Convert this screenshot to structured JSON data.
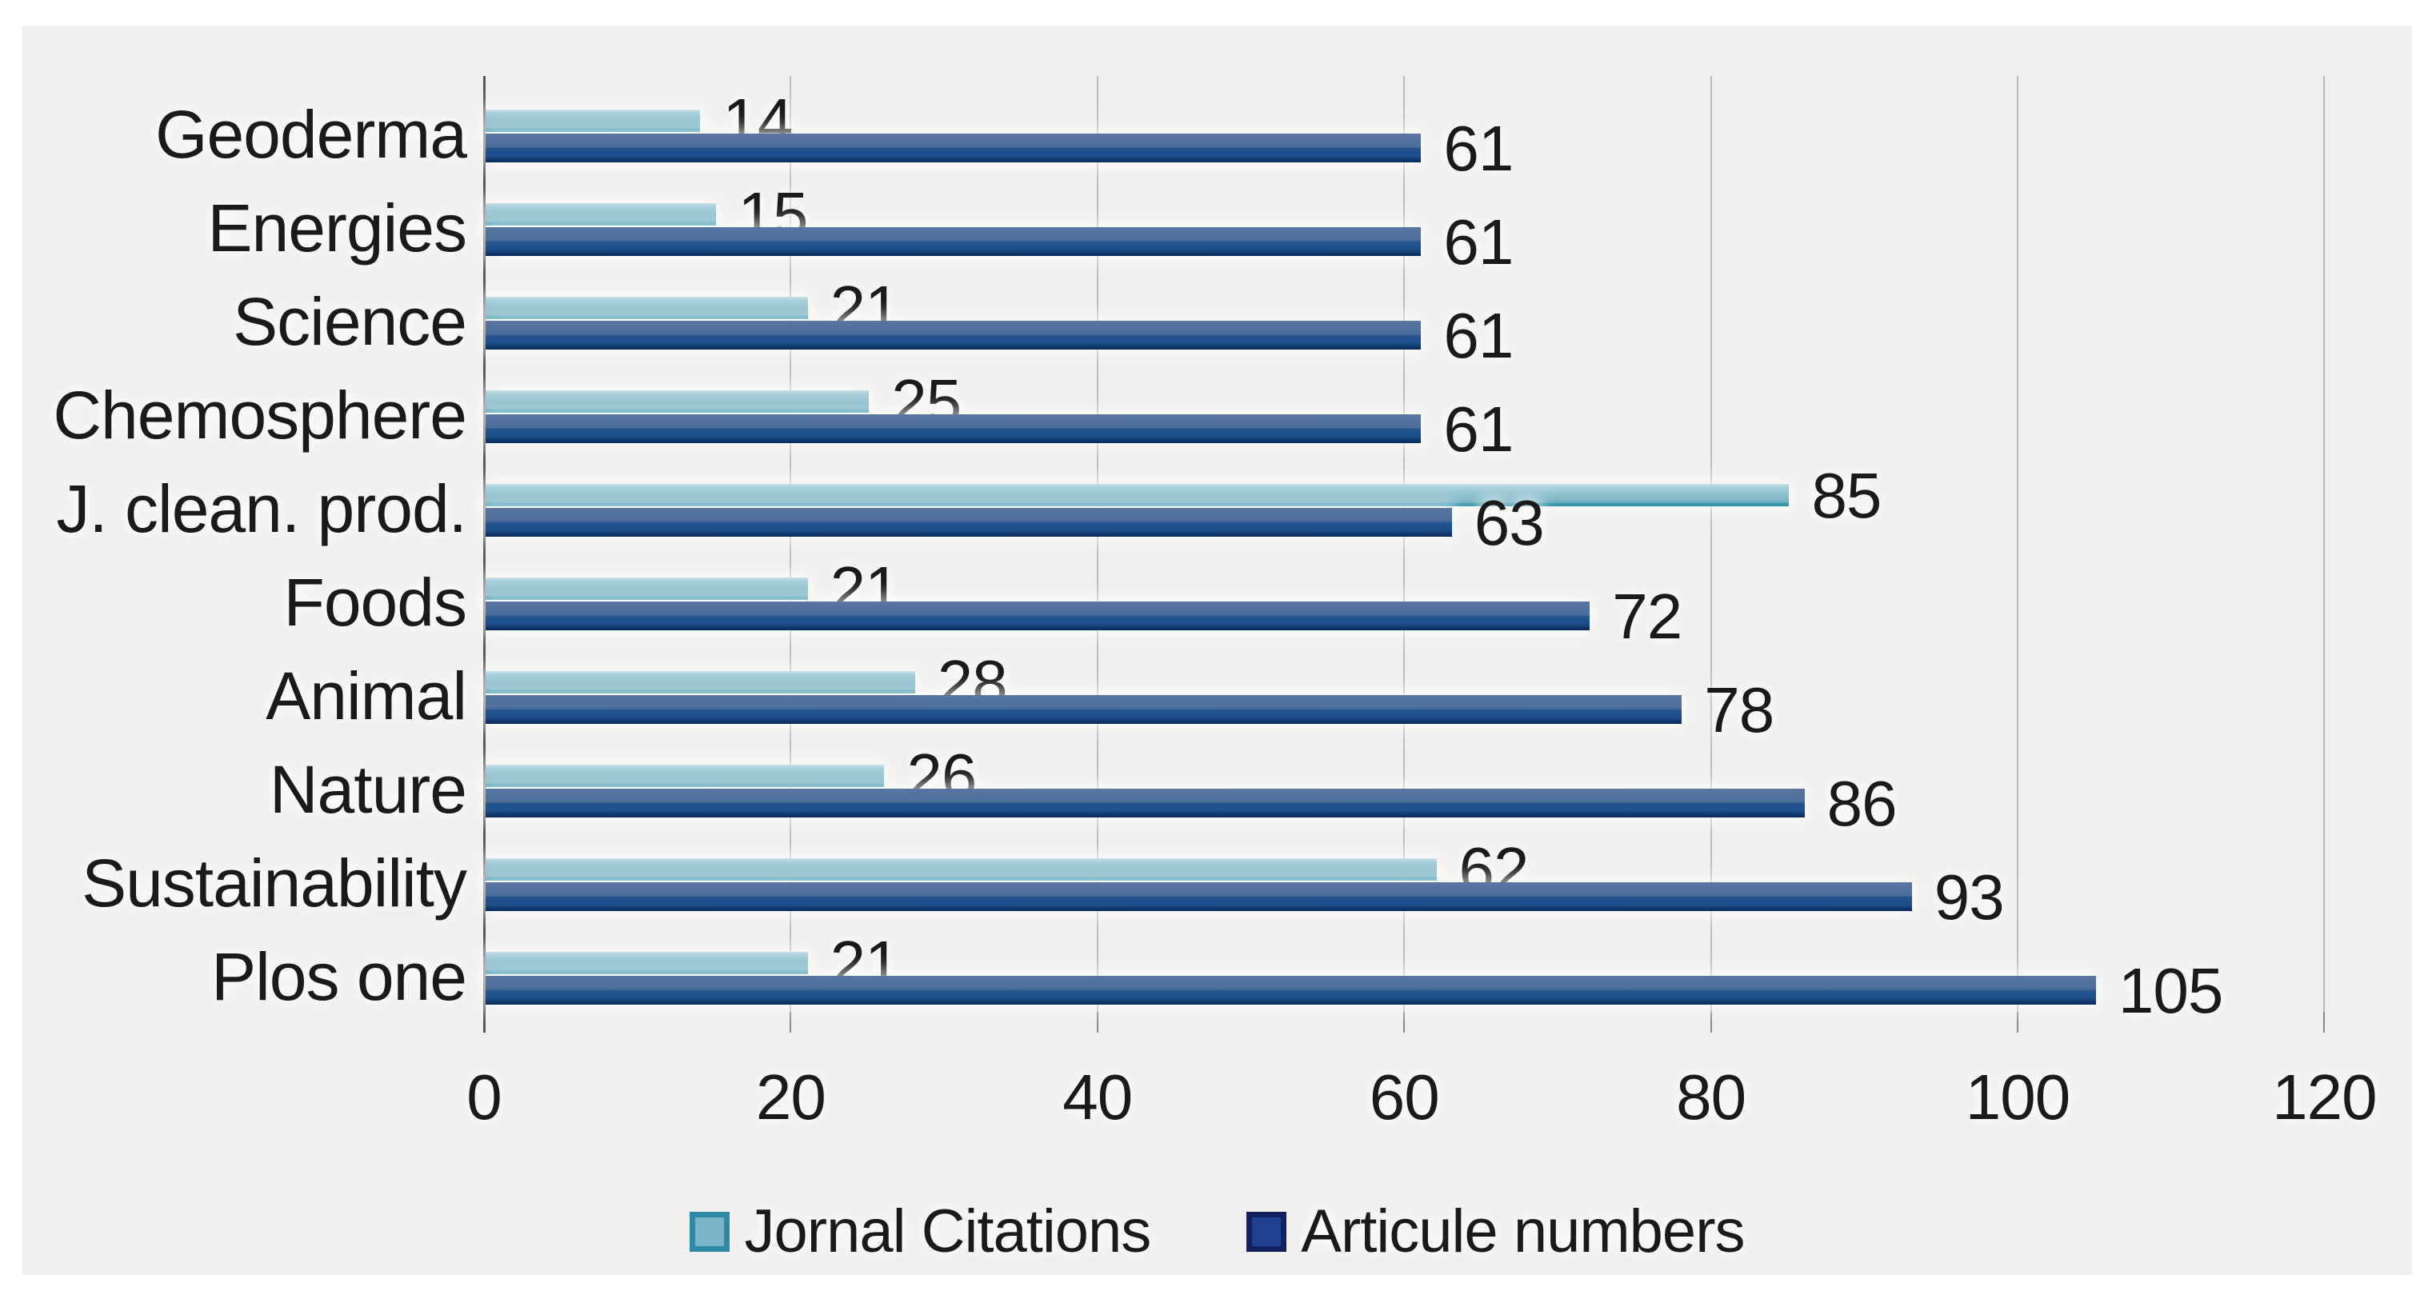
{
  "chart_data": {
    "type": "bar",
    "orientation": "horizontal",
    "title": "",
    "xlabel": "",
    "ylabel": "",
    "categories": [
      "Geoderma",
      "Energies",
      "Science",
      "Chemosphere",
      "J. clean. prod.",
      "Foods",
      "Animal",
      "Nature",
      "Sustainability",
      "Plos one"
    ],
    "series": [
      {
        "name": "Jornal Citations",
        "values": [
          14,
          15,
          21,
          25,
          85,
          21,
          28,
          26,
          62,
          21
        ],
        "color_main": "#8fc2cf",
        "color_top": "#c9e0e7",
        "color_edge": "#2d91a8",
        "swatch_fill": "#7ab6c7",
        "swatch_border": "#2a8ba3"
      },
      {
        "name": "Articule numbers",
        "values": [
          61,
          61,
          61,
          61,
          63,
          72,
          78,
          86,
          93,
          105
        ],
        "color_main": "#1d4f8d",
        "color_top": "#58769f",
        "color_edge": "#0b2a5c",
        "swatch_fill": "#20418f",
        "swatch_border": "#131f5e"
      }
    ],
    "xlim": [
      0,
      120
    ],
    "x_ticks": [
      0,
      20,
      40,
      60,
      80,
      100,
      120
    ],
    "grid": true,
    "value_labels": true,
    "legend_position": "bottom"
  },
  "colors": {
    "page_bg": "#ffffff",
    "panel_bg": "#f0efee",
    "grid": "#bcbcba",
    "axis": "#55555a",
    "tick": "#8a8a8a",
    "text": "#1a1a1a"
  }
}
